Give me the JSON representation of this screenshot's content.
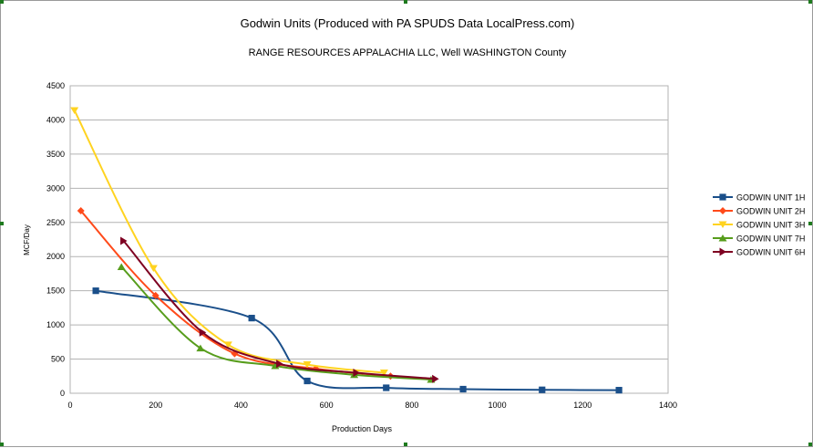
{
  "chart_data": {
    "type": "line",
    "title": "Godwin Units (Produced with PA SPUDS Data LocalPress.com)",
    "subtitle": "RANGE RESOURCES APPALACHIA LLC, Well  WASHINGTON County",
    "xlabel": "Production Days",
    "ylabel": "MCF/Day",
    "xlim": [
      0,
      1400
    ],
    "ylim": [
      0,
      4500
    ],
    "xticks": [
      0,
      200,
      400,
      600,
      800,
      1000,
      1200,
      1400
    ],
    "yticks": [
      0,
      500,
      1000,
      1500,
      2000,
      2500,
      3000,
      3500,
      4000,
      4500
    ],
    "grid": true,
    "legend": "right",
    "series": [
      {
        "name": "GODWIN UNIT 1H",
        "color": "#1a4f8a",
        "marker": "square",
        "x": [
          60,
          425,
          555,
          740,
          920,
          1105,
          1285
        ],
        "y": [
          1500,
          1100,
          180,
          80,
          60,
          50,
          45
        ]
      },
      {
        "name": "GODWIN UNIT 2H",
        "color": "#ff4a1a",
        "marker": "diamond",
        "x": [
          25,
          200,
          385,
          575,
          750
        ],
        "y": [
          2670,
          1430,
          580,
          360,
          250
        ]
      },
      {
        "name": "GODWIN UNIT 3H",
        "color": "#ffd320",
        "marker": "triangle-down",
        "x": [
          10,
          195,
          370,
          555,
          735
        ],
        "y": [
          4140,
          1830,
          710,
          420,
          300
        ]
      },
      {
        "name": "GODWIN UNIT 7H",
        "color": "#579d1c",
        "marker": "triangle-up",
        "x": [
          120,
          305,
          480,
          665,
          845
        ],
        "y": [
          1850,
          660,
          400,
          270,
          200
        ]
      },
      {
        "name": "GODWIN UNIT 6H",
        "color": "#7e0021",
        "marker": "triangle-right",
        "x": [
          125,
          310,
          490,
          670,
          855
        ],
        "y": [
          2230,
          890,
          430,
          300,
          210
        ]
      }
    ]
  }
}
